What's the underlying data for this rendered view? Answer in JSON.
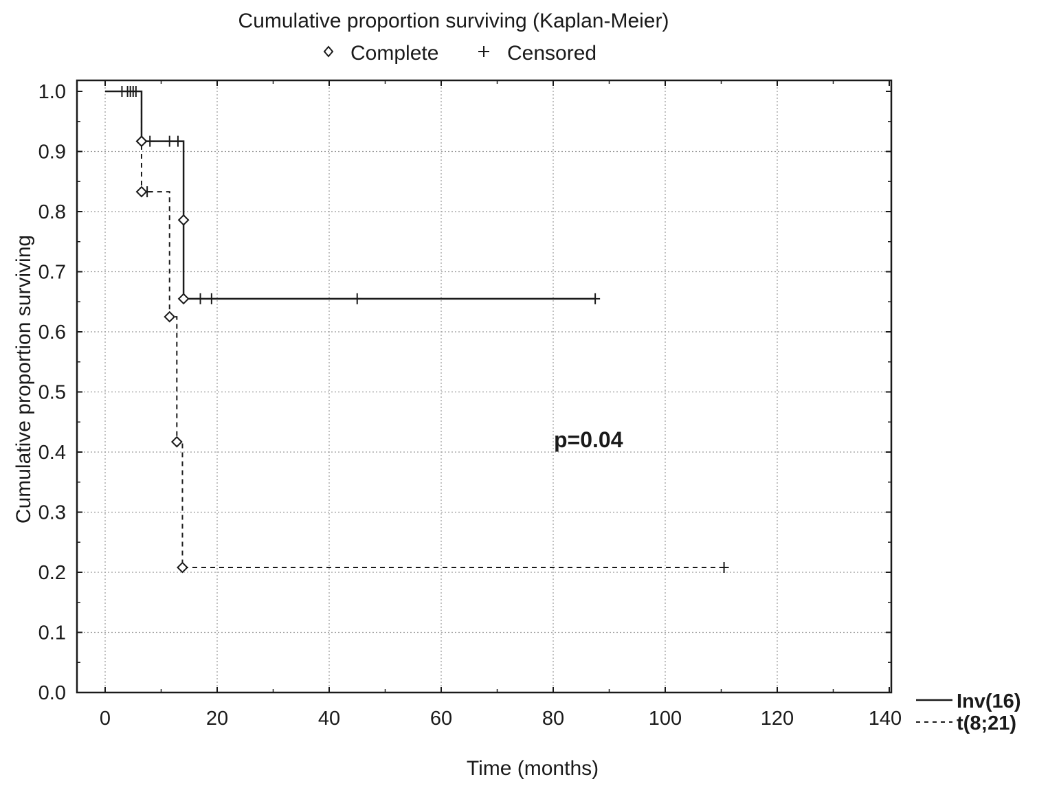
{
  "chart_data": {
    "type": "line",
    "subtype": "kaplan-meier step",
    "title": "Cumulative proportion surviving (Kaplan-Meier)",
    "xlabel": "Time (months)",
    "ylabel": "Cumulative proportion surviving",
    "xlim": [
      0,
      140
    ],
    "ylim": [
      0,
      1.0
    ],
    "xticks": [
      "0",
      "20",
      "40",
      "60",
      "80",
      "100",
      "120",
      "140"
    ],
    "yticks": [
      "0.0",
      "0.1",
      "0.2",
      "0.3",
      "0.4",
      "0.5",
      "0.6",
      "0.7",
      "0.8",
      "0.9",
      "1.0"
    ],
    "grid": true,
    "legend": {
      "position": "top",
      "markers": [
        {
          "symbol": "diamond",
          "label": "Complete"
        },
        {
          "symbol": "plus",
          "label": "Censored"
        }
      ]
    },
    "series_legend_position": "bottom-right",
    "annotation": "p=0.04",
    "series": [
      {
        "name": "Inv(16)",
        "style": "solid",
        "steps": [
          [
            0,
            1.0
          ],
          [
            6.5,
            0.917
          ],
          [
            14,
            0.786
          ],
          [
            14,
            0.655
          ],
          [
            87.5,
            0.655
          ]
        ],
        "complete": [
          [
            6.5,
            0.917
          ],
          [
            14,
            0.786
          ],
          [
            14,
            0.655
          ]
        ],
        "censored": [
          [
            3,
            1.0
          ],
          [
            4,
            1.0
          ],
          [
            4.5,
            1.0
          ],
          [
            5,
            1.0
          ],
          [
            5.5,
            1.0
          ],
          [
            8,
            0.917
          ],
          [
            11.5,
            0.917
          ],
          [
            13,
            0.917
          ],
          [
            17,
            0.655
          ],
          [
            19,
            0.655
          ],
          [
            45,
            0.655
          ],
          [
            87.5,
            0.655
          ]
        ]
      },
      {
        "name": "t(8;21)",
        "style": "dashed",
        "steps": [
          [
            6.5,
            1.0
          ],
          [
            6.5,
            0.833
          ],
          [
            11.5,
            0.625
          ],
          [
            12.8,
            0.417
          ],
          [
            13.8,
            0.208
          ],
          [
            110.5,
            0.208
          ]
        ],
        "complete": [
          [
            6.5,
            0.917
          ],
          [
            6.5,
            0.833
          ],
          [
            11.5,
            0.625
          ],
          [
            12.8,
            0.417
          ],
          [
            13.8,
            0.208
          ]
        ],
        "censored": [
          [
            7.5,
            0.833
          ],
          [
            110.5,
            0.208
          ]
        ]
      }
    ]
  }
}
